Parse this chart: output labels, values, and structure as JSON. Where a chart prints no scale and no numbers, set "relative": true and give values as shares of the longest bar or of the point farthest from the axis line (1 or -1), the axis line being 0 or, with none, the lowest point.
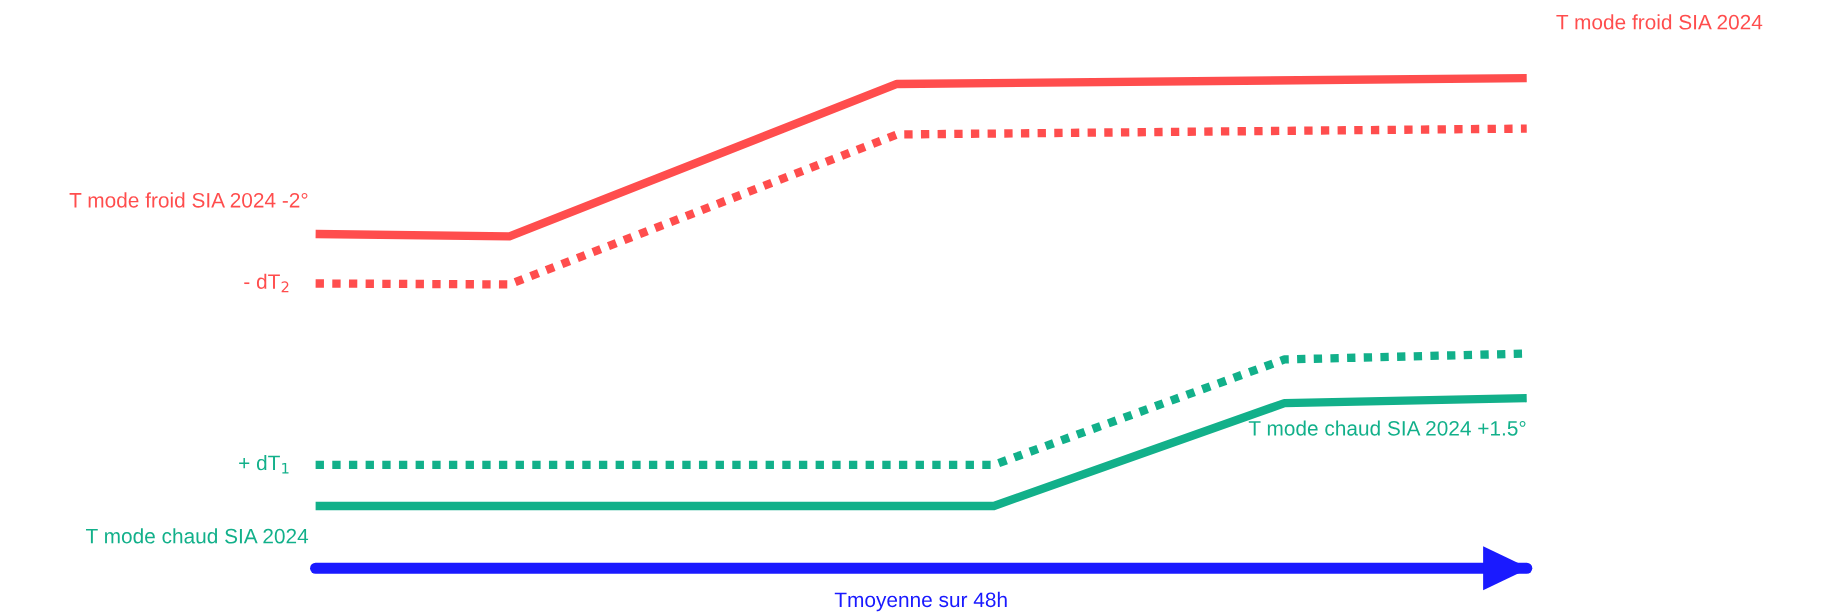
{
  "chart_data": {
    "type": "line",
    "relative": true,
    "xlabel": "Tmoyenne sur 48h",
    "marker": "none",
    "categories": [
      null,
      null,
      null,
      null,
      null,
      null,
      null,
      null,
      null,
      null,
      null,
      null,
      null,
      null,
      null,
      null,
      null,
      null,
      null,
      null,
      null,
      null,
      null,
      null,
      null,
      null
    ],
    "series": [
      {
        "name": "T mode froid SIA 2024",
        "color": "#ff4d4d",
        "line_style": "solid",
        "values": [
          0.682,
          null,
          null,
          null,
          0.677,
          null,
          null,
          null,
          null,
          null,
          null,
          null,
          0.988,
          null,
          null,
          null,
          null,
          null,
          null,
          null,
          null,
          null,
          null,
          null,
          null,
          1.0
        ]
      },
      {
        "color": "#ff4d4d",
        "line_style": "dotted",
        "values": [
          0.581,
          null,
          null,
          null,
          0.579,
          null,
          null,
          null,
          null,
          null,
          null,
          null,
          0.885,
          null,
          null,
          null,
          null,
          null,
          null,
          null,
          null,
          null,
          null,
          null,
          null,
          0.897
        ]
      },
      {
        "color": "#12b08a",
        "line_style": "dotted",
        "values": [
          0.211,
          null,
          null,
          null,
          null,
          null,
          null,
          null,
          null,
          null,
          null,
          null,
          null,
          null,
          0.211,
          null,
          null,
          null,
          null,
          null,
          0.426,
          null,
          null,
          null,
          null,
          0.438
        ]
      },
      {
        "name": "T mode chaud SIA 2024",
        "color": "#12b08a",
        "line_style": "solid",
        "values": [
          0.127,
          null,
          null,
          null,
          null,
          null,
          null,
          null,
          null,
          null,
          null,
          null,
          null,
          null,
          0.127,
          null,
          null,
          null,
          null,
          null,
          0.337,
          null,
          null,
          null,
          null,
          0.347
        ]
      }
    ],
    "annotations": [
      "T mode froid SIA 2024 -2°",
      "- dT$_{2}$",
      "+ dT$_{1}$",
      "T mode chaud SIA 2024 +1.5°"
    ]
  }
}
